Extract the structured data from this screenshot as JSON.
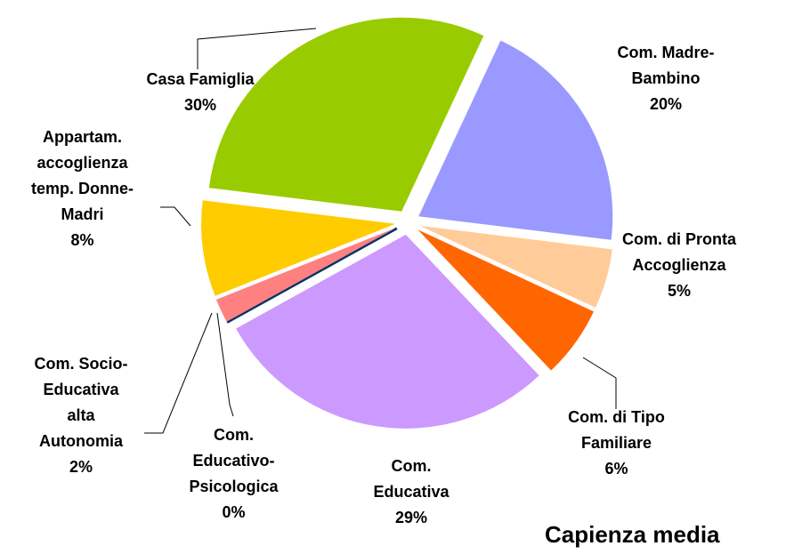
{
  "chart_data": {
    "type": "pie",
    "title": "Capienza media",
    "categories": [
      "Com. Madre-Bambino",
      "Com. di Pronta Accoglienza",
      "Com. di Tipo Familiare",
      "Com. Educativa",
      "Com. Educativo-Psicologica",
      "Com. Socio-Educativa alta Autonomia",
      "Appartam. accoglienza temp. Donne-Madri",
      "Casa Famiglia"
    ],
    "values": [
      20,
      5,
      6,
      29,
      0,
      2,
      8,
      30
    ],
    "value_labels": [
      "20%",
      "5%",
      "6%",
      "29%",
      "0%",
      "2%",
      "8%",
      "30%"
    ],
    "colors": [
      "#9999ff",
      "#ffcc99",
      "#ff6600",
      "#cc99ff",
      "#003366",
      "#ff8080",
      "#ffcc00",
      "#99cc00"
    ]
  }
}
